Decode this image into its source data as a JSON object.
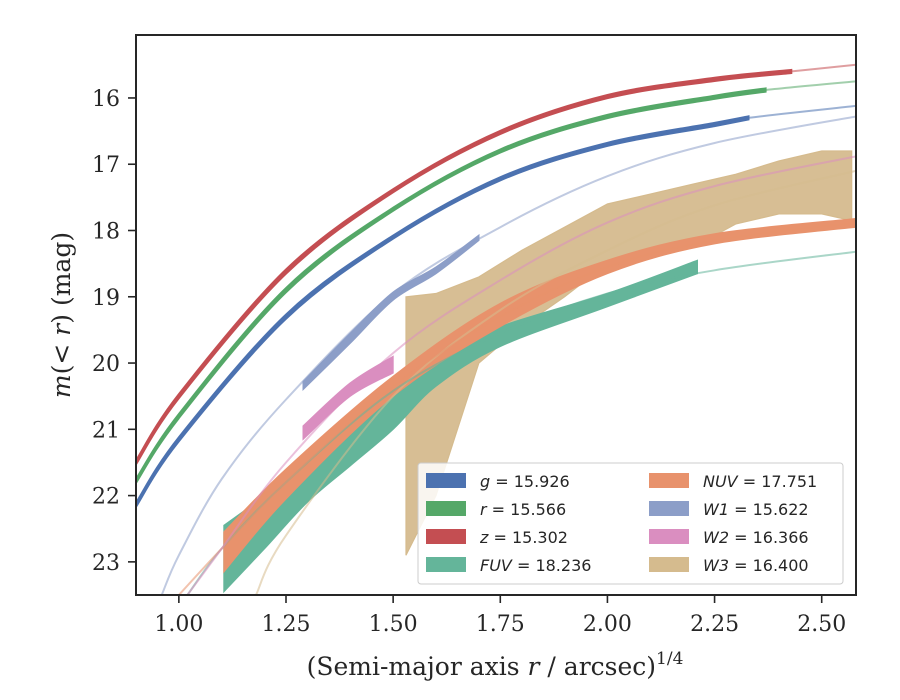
{
  "chart_data": {
    "type": "line",
    "xlabel": "(Semi-major axis r / arcsec)",
    "xlabel_var": "r",
    "xlabel_pre": "(Semi-major axis ",
    "xlabel_post": " / arcsec)",
    "xlabel_sup": "1/4",
    "ylabel": "m(< r) (mag)",
    "ylabel_pre": "m",
    "ylabel_mid": "(< ",
    "ylabel_var": "r",
    "ylabel_post": ") (mag)",
    "xlim": [
      0.9,
      2.58
    ],
    "ylim": [
      23.5,
      15.05
    ],
    "y_inverted": true,
    "grid": false,
    "legend_placement": "lower-right",
    "legend_columns": 2,
    "x_ticks": [
      {
        "value": 1.0,
        "label": "1.00"
      },
      {
        "value": 1.25,
        "label": "1.25"
      },
      {
        "value": 1.5,
        "label": "1.50"
      },
      {
        "value": 1.75,
        "label": "1.75"
      },
      {
        "value": 2.0,
        "label": "2.00"
      },
      {
        "value": 2.25,
        "label": "2.25"
      },
      {
        "value": 2.5,
        "label": "2.50"
      }
    ],
    "y_ticks": [
      {
        "value": 16,
        "label": "16"
      },
      {
        "value": 17,
        "label": "17"
      },
      {
        "value": 18,
        "label": "18"
      },
      {
        "value": 19,
        "label": "19"
      },
      {
        "value": 20,
        "label": "20"
      },
      {
        "value": 21,
        "label": "21"
      },
      {
        "value": 22,
        "label": "22"
      },
      {
        "value": 23,
        "label": "23"
      }
    ],
    "series": [
      {
        "name": "g",
        "total_mag": "15.926",
        "legend_label": "g = 15.926",
        "color": "#4c72b0",
        "model_x": [
          0.9,
          1.0,
          1.25,
          1.5,
          1.75,
          2.0,
          2.25,
          2.33,
          2.58
        ],
        "model_y": [
          22.14,
          21.15,
          19.3,
          18.1,
          17.22,
          16.7,
          16.4,
          16.3,
          16.12
        ],
        "data_x": [
          0.9,
          1.0,
          1.25,
          1.5,
          1.75,
          2.0,
          2.25,
          2.33
        ],
        "data_lo": [
          22.1,
          21.11,
          19.26,
          18.07,
          17.19,
          16.67,
          16.37,
          16.27
        ],
        "data_hi": [
          22.18,
          21.19,
          19.34,
          18.13,
          17.25,
          16.73,
          16.43,
          16.33
        ]
      },
      {
        "name": "r",
        "total_mag": "15.566",
        "legend_label": "r = 15.566",
        "color": "#55a868",
        "model_x": [
          0.9,
          1.0,
          1.25,
          1.5,
          1.75,
          2.0,
          2.25,
          2.37,
          2.58
        ],
        "model_y": [
          21.78,
          20.8,
          18.9,
          17.68,
          16.8,
          16.28,
          15.99,
          15.88,
          15.75
        ],
        "data_x": [
          0.9,
          1.0,
          1.25,
          1.5,
          1.75,
          2.0,
          2.25,
          2.37
        ],
        "data_lo": [
          21.74,
          20.76,
          18.86,
          17.65,
          16.77,
          16.25,
          15.96,
          15.85
        ],
        "data_hi": [
          21.82,
          20.84,
          18.94,
          17.71,
          16.83,
          16.31,
          16.02,
          15.91
        ]
      },
      {
        "name": "z",
        "total_mag": "15.302",
        "legend_label": "z = 15.302",
        "color": "#c44e52",
        "model_x": [
          0.9,
          1.0,
          1.25,
          1.5,
          1.75,
          2.0,
          2.25,
          2.43,
          2.58
        ],
        "model_y": [
          21.5,
          20.5,
          18.62,
          17.4,
          16.52,
          15.98,
          15.72,
          15.6,
          15.5
        ],
        "data_x": [
          0.9,
          1.0,
          1.25,
          1.5,
          1.75,
          2.0,
          2.25,
          2.43
        ],
        "data_lo": [
          21.46,
          20.46,
          18.58,
          17.37,
          16.49,
          15.95,
          15.69,
          15.57
        ],
        "data_hi": [
          21.54,
          20.54,
          18.66,
          17.43,
          16.55,
          16.01,
          15.75,
          15.63
        ]
      },
      {
        "name": "FUV",
        "total_mag": "18.236",
        "legend_label": "FUV = 18.236",
        "color": "#64b59a",
        "model_x": [
          1.02,
          1.1,
          1.25,
          1.5,
          1.75,
          2.0,
          2.25,
          2.58
        ],
        "model_y": [
          23.5,
          22.8,
          21.8,
          20.42,
          19.55,
          18.95,
          18.6,
          18.32
        ],
        "data_x": [
          1.105,
          1.2,
          1.3,
          1.4,
          1.5,
          1.6,
          1.75,
          2.0,
          2.21
        ],
        "data_lo": [
          22.45,
          22.0,
          21.45,
          20.95,
          20.3,
          19.9,
          19.45,
          18.95,
          18.45
        ],
        "data_hi": [
          23.45,
          22.8,
          22.1,
          21.55,
          21.0,
          20.35,
          19.75,
          19.15,
          18.65
        ]
      },
      {
        "name": "NUV",
        "total_mag": "17.751",
        "legend_label": "NUV = 17.751",
        "color": "#e8926c",
        "model_x": [
          1.0,
          1.1,
          1.25,
          1.5,
          1.75,
          2.0,
          2.25,
          2.58
        ],
        "model_y": [
          23.5,
          22.8,
          21.8,
          20.35,
          19.3,
          18.55,
          18.15,
          17.88
        ],
        "data_x": [
          1.105,
          1.25,
          1.5,
          1.75,
          2.0,
          2.25,
          2.58
        ],
        "data_lo": [
          22.55,
          21.6,
          20.2,
          19.1,
          18.45,
          18.05,
          17.82
        ],
        "data_hi": [
          23.15,
          22.05,
          20.5,
          19.45,
          18.65,
          18.2,
          17.95
        ]
      },
      {
        "name": "W1",
        "total_mag": "15.622",
        "legend_label": "W1 = 15.622",
        "color": "#8c9ec8",
        "model_x": [
          0.96,
          1.0,
          1.1,
          1.25,
          1.5,
          1.75,
          2.0,
          2.25,
          2.58
        ],
        "model_y": [
          23.5,
          22.9,
          21.75,
          20.55,
          18.95,
          17.95,
          17.18,
          16.68,
          16.28
        ],
        "data_x": [
          1.29,
          1.4,
          1.5,
          1.6,
          1.7
        ],
        "data_lo": [
          20.28,
          19.55,
          18.93,
          18.55,
          18.07
        ],
        "data_hi": [
          20.4,
          19.7,
          19.05,
          18.65,
          18.15
        ]
      },
      {
        "name": "W2",
        "total_mag": "16.366",
        "legend_label": "W2 = 16.366",
        "color": "#da8ec0",
        "model_x": [
          1.02,
          1.1,
          1.25,
          1.5,
          1.75,
          2.0,
          2.25,
          2.58
        ],
        "model_y": [
          23.5,
          22.8,
          21.5,
          19.85,
          18.75,
          17.88,
          17.33,
          16.88
        ],
        "data_x": [
          1.29,
          1.4,
          1.5
        ],
        "data_lo": [
          20.95,
          20.3,
          19.9
        ],
        "data_hi": [
          21.15,
          20.5,
          20.15
        ]
      },
      {
        "name": "W3",
        "total_mag": "16.400",
        "legend_label": "W3 = 16.400",
        "color": "#d5bb8e",
        "model_x": [
          1.18,
          1.25,
          1.5,
          1.75,
          2.0,
          2.25,
          2.58
        ],
        "model_y": [
          23.5,
          22.6,
          20.5,
          19.2,
          18.3,
          17.62,
          17.1
        ],
        "data_x": [
          1.53,
          1.6,
          1.7,
          1.8,
          1.9,
          2.0,
          2.1,
          2.2,
          2.3,
          2.4,
          2.5,
          2.57
        ],
        "data_lo": [
          22.9,
          22.0,
          20.0,
          19.45,
          19.0,
          18.5,
          18.3,
          18.25,
          17.9,
          17.75,
          17.75,
          17.85
        ],
        "data_hi": [
          19.0,
          18.95,
          18.7,
          18.3,
          17.95,
          17.6,
          17.45,
          17.3,
          17.15,
          16.95,
          16.8,
          16.8
        ]
      }
    ]
  }
}
